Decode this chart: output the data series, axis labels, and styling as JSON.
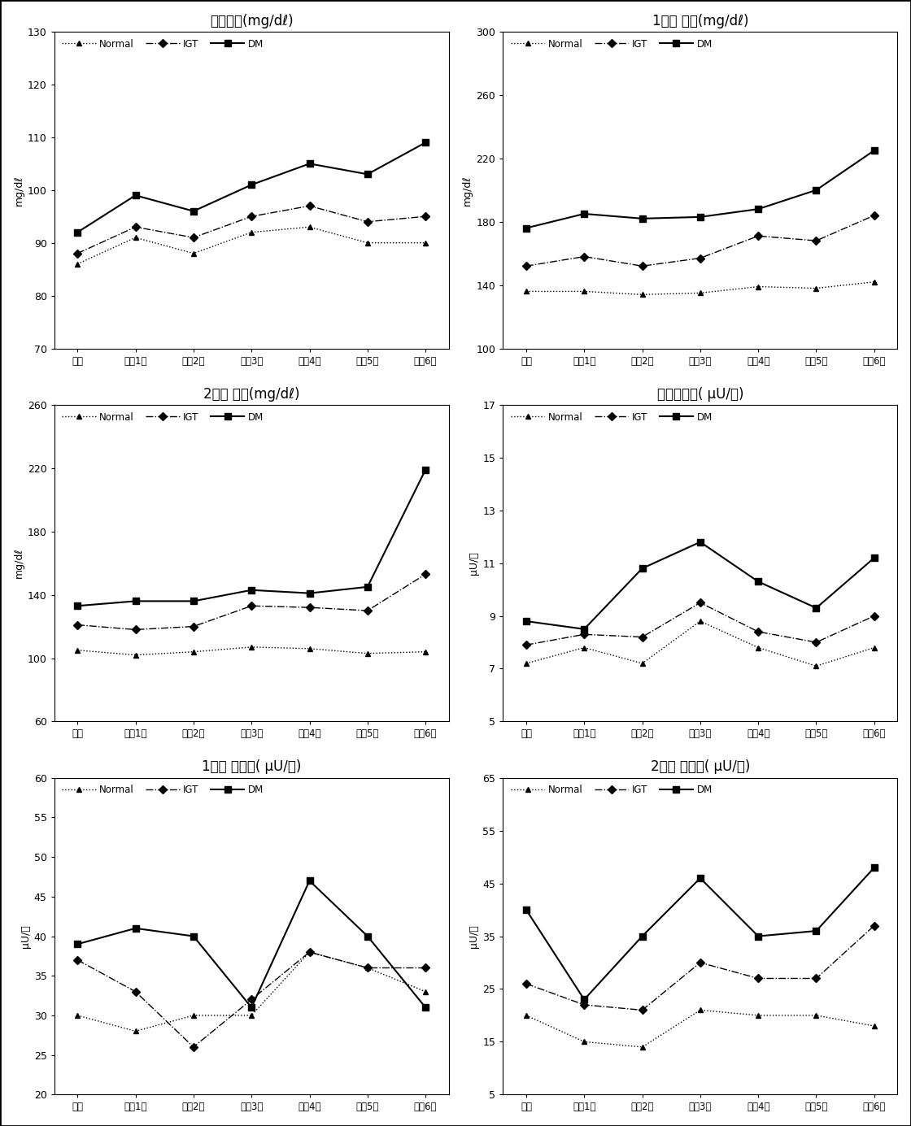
{
  "x_labels": [
    "기초",
    "추적1기",
    "추적2기",
    "추적3기",
    "추적4기",
    "추적5기",
    "추적6기"
  ],
  "panels": [
    {
      "title": "공복혁당(mg/dℓ)",
      "ylabel": "mg/dℓ",
      "ylim": [
        70,
        130
      ],
      "yticks": [
        70,
        80,
        90,
        100,
        110,
        120,
        130
      ],
      "normal": [
        86,
        91,
        88,
        92,
        93,
        90,
        90
      ],
      "igt": [
        88,
        93,
        91,
        95,
        97,
        94,
        95
      ],
      "dm": [
        92,
        99,
        96,
        101,
        105,
        103,
        109
      ]
    },
    {
      "title": "1시간 혁당(mg/dℓ)",
      "ylabel": "mg/dℓ",
      "ylim": [
        100,
        300
      ],
      "yticks": [
        100,
        140,
        180,
        220,
        260,
        300
      ],
      "normal": [
        136,
        136,
        134,
        135,
        139,
        138,
        142
      ],
      "igt": [
        152,
        158,
        152,
        157,
        171,
        168,
        184
      ],
      "dm": [
        176,
        185,
        182,
        183,
        188,
        200,
        225
      ]
    },
    {
      "title": "2시간 혁당(mg/dℓ)",
      "ylabel": "mg/dℓ",
      "ylim": [
        60,
        260
      ],
      "yticks": [
        60,
        100,
        140,
        180,
        220,
        260
      ],
      "normal": [
        105,
        102,
        104,
        107,
        106,
        103,
        104
      ],
      "igt": [
        121,
        118,
        120,
        133,
        132,
        130,
        153
      ],
      "dm": [
        133,
        136,
        136,
        143,
        141,
        145,
        219
      ]
    },
    {
      "title": "공복인슬런( μU/㎞)",
      "ylabel": "μU/㎞",
      "ylim": [
        5,
        17
      ],
      "yticks": [
        5,
        7,
        9,
        11,
        13,
        15,
        17
      ],
      "normal": [
        7.2,
        7.8,
        7.2,
        8.8,
        7.8,
        7.1,
        7.8
      ],
      "igt": [
        7.9,
        8.3,
        8.2,
        9.5,
        8.4,
        8.0,
        9.0
      ],
      "dm": [
        8.8,
        8.5,
        10.8,
        11.8,
        10.3,
        9.3,
        11.2
      ]
    },
    {
      "title": "1시간 인슬런( μU/㎞)",
      "ylabel": "μU/㎞",
      "ylim": [
        20,
        60
      ],
      "yticks": [
        20,
        25,
        30,
        35,
        40,
        45,
        50,
        55,
        60
      ],
      "normal": [
        30,
        28,
        30,
        30,
        38,
        36,
        33
      ],
      "igt": [
        37,
        33,
        26,
        32,
        38,
        36,
        36
      ],
      "dm": [
        39,
        41,
        40,
        31,
        47,
        40,
        31
      ]
    },
    {
      "title": "2시간 인슬런( μU/㎞)",
      "ylabel": "μU/㎞",
      "ylim": [
        5,
        65
      ],
      "yticks": [
        5,
        15,
        25,
        35,
        45,
        55,
        65
      ],
      "normal": [
        20,
        15,
        14,
        21,
        20,
        20,
        18
      ],
      "igt": [
        26,
        22,
        21,
        30,
        27,
        27,
        37
      ],
      "dm": [
        40,
        23,
        35,
        46,
        35,
        36,
        48
      ]
    }
  ]
}
